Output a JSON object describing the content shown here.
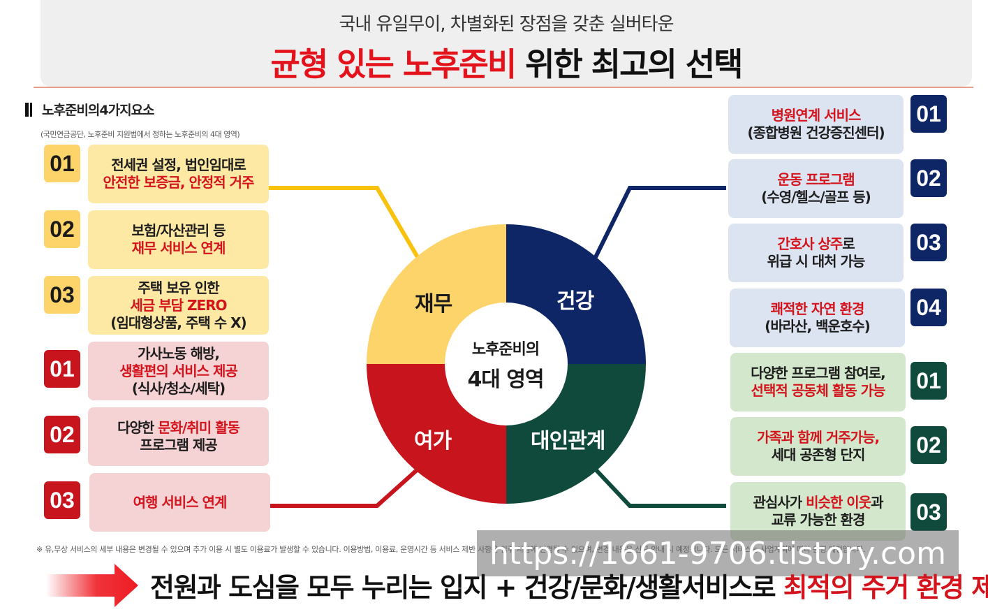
{
  "header": {
    "subtitle": "국내 유일무이, 차별화된 장점을 갖춘 실버타운",
    "title_red": "균형 있는 노후준비",
    "title_black": " 위한 최고의 선택"
  },
  "section": {
    "title": "노후준비의4가지요소",
    "note": "(국민연금공단, 노후준비 지원법에서 정하는 노후준비의 4대 영역)"
  },
  "center": {
    "line1": "노후준비의",
    "line2": "4대 영역"
  },
  "quadrants": {
    "finance": "재무",
    "health": "건강",
    "leisure": "여가",
    "relations": "대인관계"
  },
  "colors": {
    "yellow": "#fdd46a",
    "navy": "#0e2666",
    "red": "#c8141d",
    "green": "#0f4a3c"
  },
  "finance_items": [
    {
      "num": "01",
      "line1": "전세권 설정, 법인임대로",
      "line2_red": "안전한 보증금, 안정적 거주"
    },
    {
      "num": "02",
      "line1": "보험/자산관리 등",
      "line2_red": "재무 서비스 연계"
    },
    {
      "num": "03",
      "line1": "주택 보유 인한",
      "line2_red": "세금 부담 ZERO",
      "line3": "(임대형상품, 주택 수 X)"
    }
  ],
  "leisure_items": [
    {
      "num": "01",
      "line1": "가사노동 해방,",
      "line2_red": "생활편의 서비스 제공",
      "line3": "(식사/청소/세탁)"
    },
    {
      "num": "02",
      "line1_black": "다양한 ",
      "line1_red": "문화/취미 활동",
      "line2": "프로그램 제공"
    },
    {
      "num": "03",
      "line1_red": "여행 서비스 연계"
    }
  ],
  "health_items": [
    {
      "num": "01",
      "line1_red": "병원연계 서비스",
      "line2": "(종합병원 건강증진센터)"
    },
    {
      "num": "02",
      "line1_red": "운동 프로그램",
      "line2": "(수영/헬스/골프 등)"
    },
    {
      "num": "03",
      "line1_red": "간호사 상주",
      "line1_black": "로",
      "line2": "위급 시 대처 가능"
    },
    {
      "num": "04",
      "line1_red": "쾌적한 자연 환경",
      "line2": "(바라산, 백운호수)"
    }
  ],
  "relation_items": [
    {
      "num": "01",
      "line1": "다양한 프로그램 참여로,",
      "line2_red": "선택적 공동체 활동 가능"
    },
    {
      "num": "02",
      "line1_red": "가족과 함께 거주가능,",
      "line2": "세대 공존형 단지"
    },
    {
      "num": "03",
      "line1_a": "관심사가 ",
      "line1_red": "비슷한 이웃",
      "line1_b": "과",
      "line2": "교류 가능한 환경"
    }
  ],
  "disclaimer": "※ 유,무상 서비스의 세부 내용은 변경될 수 있으며 추가 이용 시 별도 이용료가 발생할 수 있습니다. 이용방법, 이용료, 운영시간 등 서비스 제반 사항은 입주 시점에 변경될 수 있으며, 변경 내용은 신규 안내 시 예정됩니다. 모든 서비스는 사업계획에 따라 운영 예정입니다.",
  "watermark": "https://1661-9706.tistory.com",
  "bottom": {
    "black": "전원과 도심을 모두 누리는 입지 + 건강/문화/생활서비스로 ",
    "red": "최적의 주거 환경 제공"
  }
}
